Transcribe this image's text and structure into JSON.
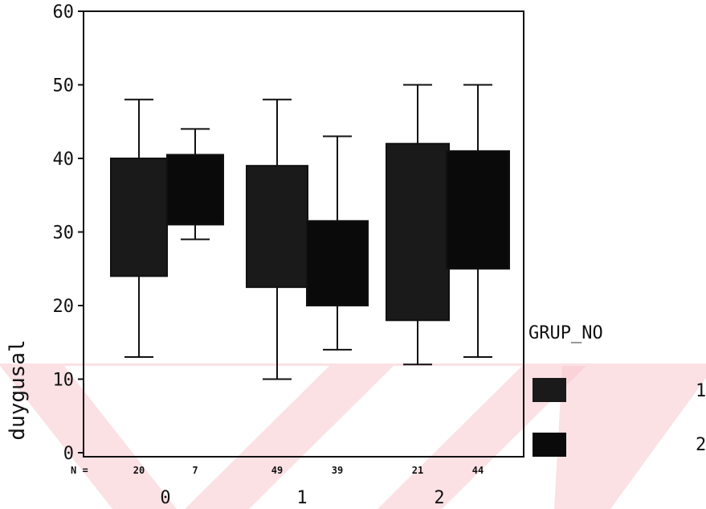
{
  "chart_data": {
    "type": "boxplot",
    "ylabel": "duygusal",
    "ylim": [
      0,
      60
    ],
    "yticks": [
      0,
      10,
      20,
      30,
      40,
      50,
      60
    ],
    "categories": [
      "0",
      "1",
      "2"
    ],
    "n_label": "N =",
    "legend": {
      "title": "GRUP_NO",
      "placement": "right",
      "entries": [
        "1",
        "2"
      ]
    },
    "series": [
      {
        "name": "1",
        "color": "#1a1a1a",
        "boxes": [
          {
            "category": "0",
            "n": "20",
            "min": 13,
            "q1": 24,
            "q3": 40,
            "max": 48
          },
          {
            "category": "1",
            "n": "49",
            "min": 10,
            "q1": 22.5,
            "q3": 39,
            "max": 48
          },
          {
            "category": "2",
            "n": "21",
            "min": 12,
            "q1": 18,
            "q3": 42,
            "max": 50
          }
        ]
      },
      {
        "name": "2",
        "color": "#0a0a0a",
        "boxes": [
          {
            "category": "0",
            "n": "7",
            "min": 29,
            "q1": 31,
            "q3": 40.5,
            "max": 44
          },
          {
            "category": "1",
            "n": "39",
            "min": 14,
            "q1": 20,
            "q3": 31.5,
            "max": 43
          },
          {
            "category": "2",
            "n": "44",
            "min": 13,
            "q1": 25,
            "q3": 41,
            "max": 50
          }
        ]
      }
    ]
  }
}
